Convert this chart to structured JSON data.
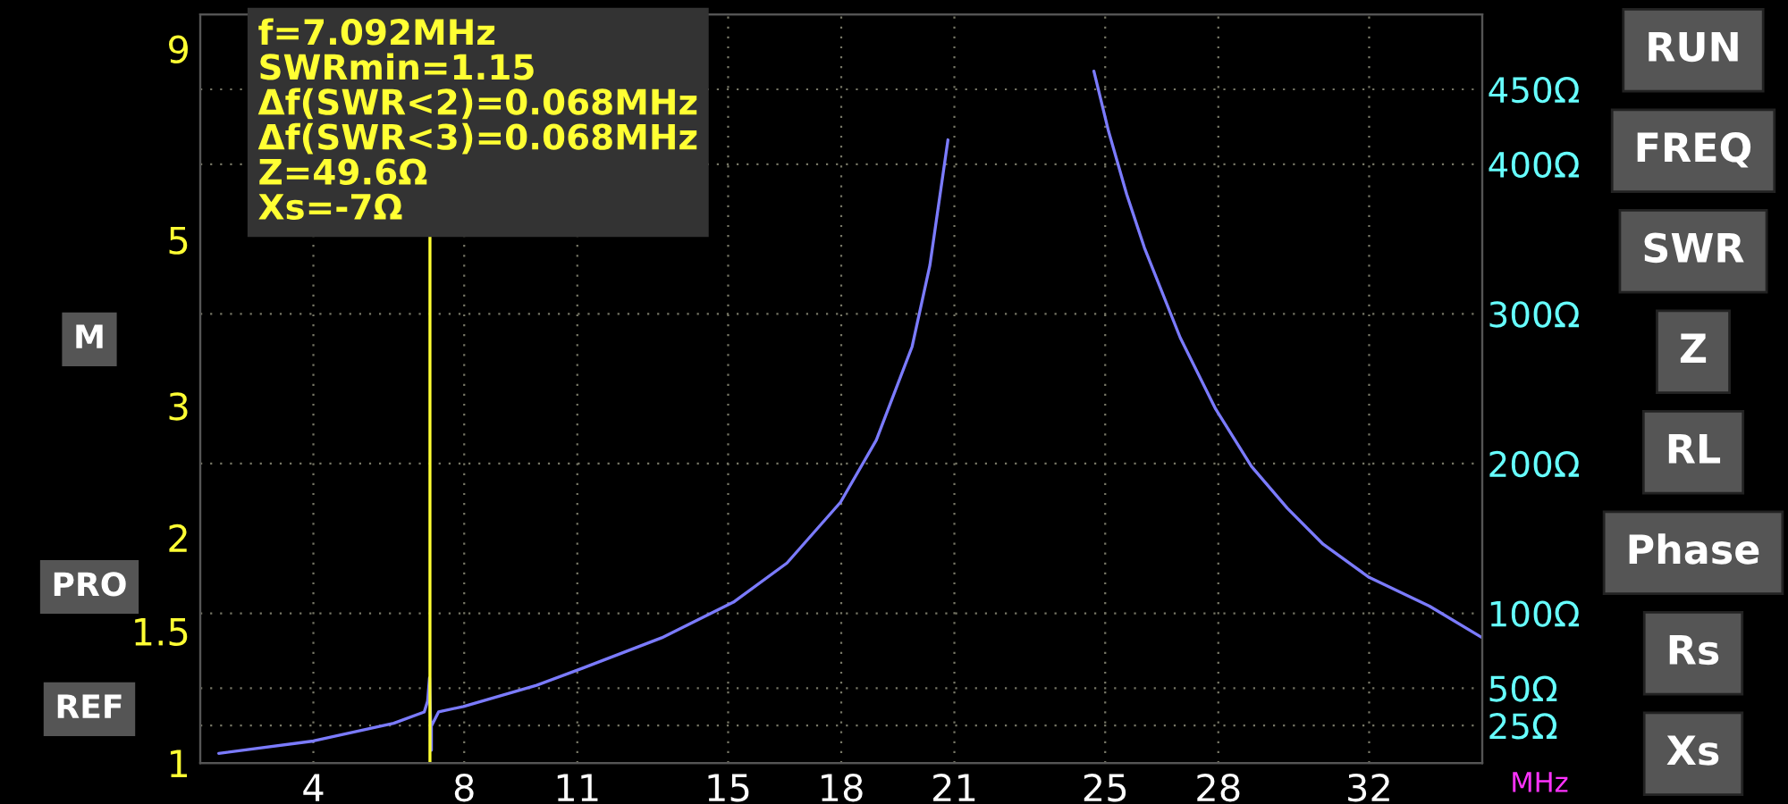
{
  "chart_data": {
    "type": "line",
    "xlabel": "MHz",
    "x": [
      1.49,
      4,
      6.13,
      6.94,
      7.03,
      7.08,
      7.13,
      7.13,
      7.32,
      7.98,
      9.92,
      11.16,
      13.24,
      15.14,
      16.56,
      17.98,
      18.93,
      19.88,
      20.35,
      20.83,
      20.97,
      22.7,
      24.47,
      24.7,
      25.09,
      25.57,
      26.04,
      26.99,
      27.93,
      28.88,
      29.83,
      30.78,
      32,
      33.6,
      35
    ],
    "series": [
      {
        "color": "#7b7bff",
        "values": [
          1.03,
          1.07,
          1.13,
          1.17,
          1.21,
          1.3,
          1.04,
          1.12,
          1.17,
          1.19,
          1.27,
          1.34,
          1.47,
          1.64,
          1.85,
          2.23,
          2.7,
          3.6,
          4.62,
          6.8,
          null,
          null,
          null,
          8.4,
          6.98,
          5.75,
          4.88,
          3.7,
          2.97,
          2.49,
          2.19,
          1.96,
          1.77,
          1.62,
          1.47
        ]
      }
    ],
    "log": "y",
    "xlim": [
      1,
      35
    ],
    "xticks": [
      4,
      8,
      11,
      15,
      18,
      21,
      25,
      28,
      32
    ],
    "ylim": [
      1,
      10
    ],
    "yticks": [
      1,
      1.5,
      2,
      3,
      5,
      9
    ],
    "y2lim": [
      0,
      500
    ],
    "y2ticks": [
      {
        "value": 25,
        "label": "25Ω"
      },
      {
        "value": 50,
        "label": "50Ω"
      },
      {
        "value": 100,
        "label": "100Ω"
      },
      {
        "value": 200,
        "label": "200Ω"
      },
      {
        "value": 300,
        "label": "300Ω"
      },
      {
        "value": 400,
        "label": "400Ω"
      },
      {
        "value": 450,
        "label": "450Ω"
      }
    ],
    "grid": true,
    "ref_lines": [
      {
        "axis": "x",
        "value": 7.092,
        "color": "#ffff33"
      }
    ],
    "annotations": [
      "f=7.092MHz",
      "SWRmin=1.15",
      "Δf(SWR<2)=0.068MHz",
      "Δf(SWR<3)=0.068MHz",
      "Z=49.6Ω",
      "Xs=-7Ω",
      "M",
      "PRO",
      "REF",
      "RUN",
      "FREQ",
      "SWR",
      "Z",
      "RL",
      "Phase",
      "Rs",
      "Xs"
    ]
  }
}
